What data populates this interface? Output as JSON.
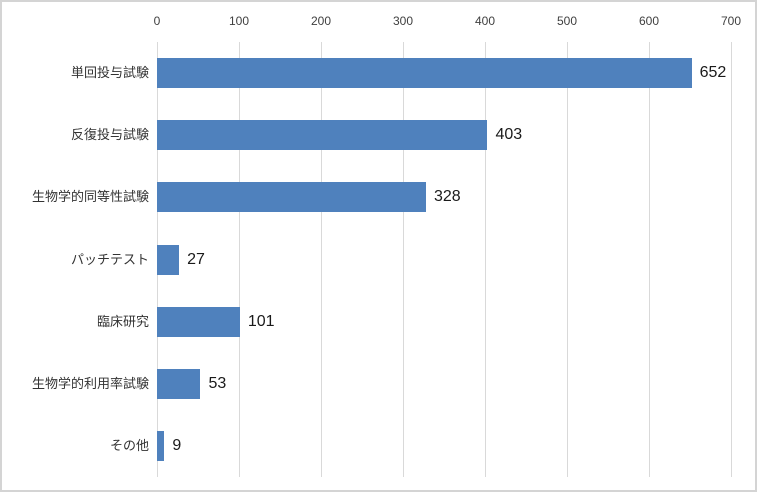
{
  "chart_data": {
    "type": "bar",
    "orientation": "horizontal",
    "title": "",
    "xlabel": "",
    "ylabel": "",
    "categories": [
      "単回投与試験",
      "反復投与試験",
      "生物学的同等性試験",
      "パッチテスト",
      "臨床研究",
      "生物学的利用率試験",
      "その他"
    ],
    "values": [
      652,
      403,
      328,
      27,
      101,
      53,
      9
    ],
    "data_labels": [
      "652",
      "403",
      "328",
      "27",
      "101",
      "53",
      "9"
    ],
    "x_ticks": [
      "0",
      "100",
      "200",
      "300",
      "400",
      "500",
      "600",
      "700"
    ],
    "x_tick_values": [
      0,
      100,
      200,
      300,
      400,
      500,
      600,
      700
    ],
    "xlim": [
      0,
      700
    ],
    "grid": true,
    "legend": false,
    "axis_position": "top",
    "colors": {
      "bar": "#4F81BD",
      "gridline": "#D9D9D9",
      "tick_text": "#404040",
      "category_text": "#333333",
      "value_text": "#1a1a1a",
      "frame_border": "#D4D4D4",
      "background": "#FFFFFF"
    }
  }
}
